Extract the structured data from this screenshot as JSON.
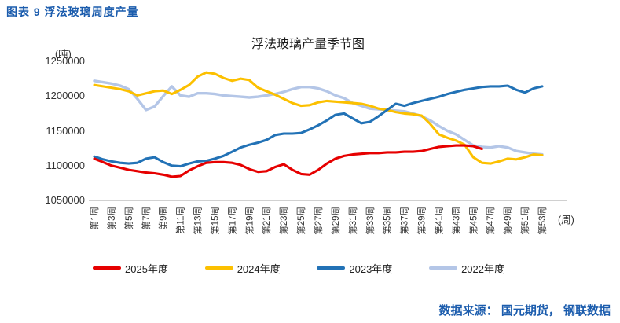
{
  "header": {
    "title": "图表 9 浮法玻璃周度产量"
  },
  "footer": {
    "source": "数据来源： 国元期货， 钢联数据"
  },
  "colors": {
    "accent_text": "#1b5cad",
    "axis_line": "#d0d0d0",
    "tick_text": "#333333"
  },
  "chart_data": {
    "type": "line",
    "title": "浮法玻璃产量季节图",
    "y_unit": "(吨)",
    "x_unit": "(周)",
    "xlabel": "周",
    "ylabel": "吨",
    "ylim": [
      1050000,
      1250000
    ],
    "y_ticks": [
      1250000,
      1200000,
      1150000,
      1100000,
      1050000
    ],
    "x_weeks": 53,
    "x_tick_labels": [
      "第1周",
      "第3周",
      "第5周",
      "第7周",
      "第9周",
      "第11周",
      "第13周",
      "第15周",
      "第17周",
      "第19周",
      "第21周",
      "第23周",
      "第25周",
      "第27周",
      "第29周",
      "第31周",
      "第33周",
      "第35周",
      "第37周",
      "第39周",
      "第41周",
      "第43周",
      "第45周",
      "第47周",
      "第49周",
      "第51周",
      "第53周"
    ],
    "grid": false,
    "legend_position": "bottom",
    "series": [
      {
        "name": "2025年度",
        "color": "#e60000",
        "start_week": 1,
        "values": [
          1110000,
          1105000,
          1100000,
          1097000,
          1094000,
          1092000,
          1090000,
          1089000,
          1087000,
          1084000,
          1085000,
          1093000,
          1099000,
          1104000,
          1105000,
          1105000,
          1104000,
          1101000,
          1095000,
          1091000,
          1092000,
          1098000,
          1102000,
          1094000,
          1088000,
          1087000,
          1094000,
          1103000,
          1110000,
          1114000,
          1116000,
          1117000,
          1118000,
          1118000,
          1119000,
          1119000,
          1120000,
          1120000,
          1121000,
          1124000,
          1127000,
          1128000,
          1129000,
          1129000,
          1128000,
          1124000
        ]
      },
      {
        "name": "2024年度",
        "color": "#fcc000",
        "start_week": 1,
        "values": [
          1216000,
          1214000,
          1212000,
          1210000,
          1207000,
          1201000,
          1204000,
          1207000,
          1208000,
          1203000,
          1209000,
          1216000,
          1228000,
          1234000,
          1232000,
          1226000,
          1222000,
          1225000,
          1223000,
          1212000,
          1207000,
          1202000,
          1196000,
          1190000,
          1186000,
          1187000,
          1191000,
          1193000,
          1192000,
          1191000,
          1190000,
          1189000,
          1186000,
          1182000,
          1180000,
          1177000,
          1175000,
          1174000,
          1172000,
          1160000,
          1145000,
          1140000,
          1136000,
          1130000,
          1112000,
          1104000,
          1103000,
          1106000,
          1110000,
          1109000,
          1112000,
          1116000,
          1115000
        ]
      },
      {
        "name": "2023年度",
        "color": "#2272b6",
        "start_week": 1,
        "values": [
          1113000,
          1109000,
          1106000,
          1104000,
          1103000,
          1104000,
          1110000,
          1112000,
          1105000,
          1100000,
          1099000,
          1103000,
          1106000,
          1107000,
          1110000,
          1114000,
          1120000,
          1126000,
          1130000,
          1133000,
          1137000,
          1144000,
          1146000,
          1146000,
          1147000,
          1152000,
          1158000,
          1165000,
          1173000,
          1175000,
          1168000,
          1161000,
          1163000,
          1171000,
          1180000,
          1189000,
          1186000,
          1190000,
          1193000,
          1196000,
          1199000,
          1203000,
          1206000,
          1209000,
          1211000,
          1213000,
          1214000,
          1214000,
          1215000,
          1209000,
          1205000,
          1211000,
          1214000
        ]
      },
      {
        "name": "2022年度",
        "color": "#b4c6e7",
        "start_week": 1,
        "values": [
          1222000,
          1220000,
          1218000,
          1215000,
          1210000,
          1196000,
          1180000,
          1185000,
          1200000,
          1214000,
          1201000,
          1199000,
          1204000,
          1204000,
          1203000,
          1201000,
          1200000,
          1199000,
          1198000,
          1199000,
          1201000,
          1203000,
          1206000,
          1210000,
          1213000,
          1213000,
          1211000,
          1207000,
          1201000,
          1197000,
          1190000,
          1186000,
          1182000,
          1181000,
          1180000,
          1179000,
          1178000,
          1175000,
          1171000,
          1165000,
          1157000,
          1150000,
          1145000,
          1137000,
          1129000,
          1127000,
          1126000,
          1128000,
          1126000,
          1121000,
          1119000,
          1117000,
          1116000
        ]
      }
    ]
  }
}
